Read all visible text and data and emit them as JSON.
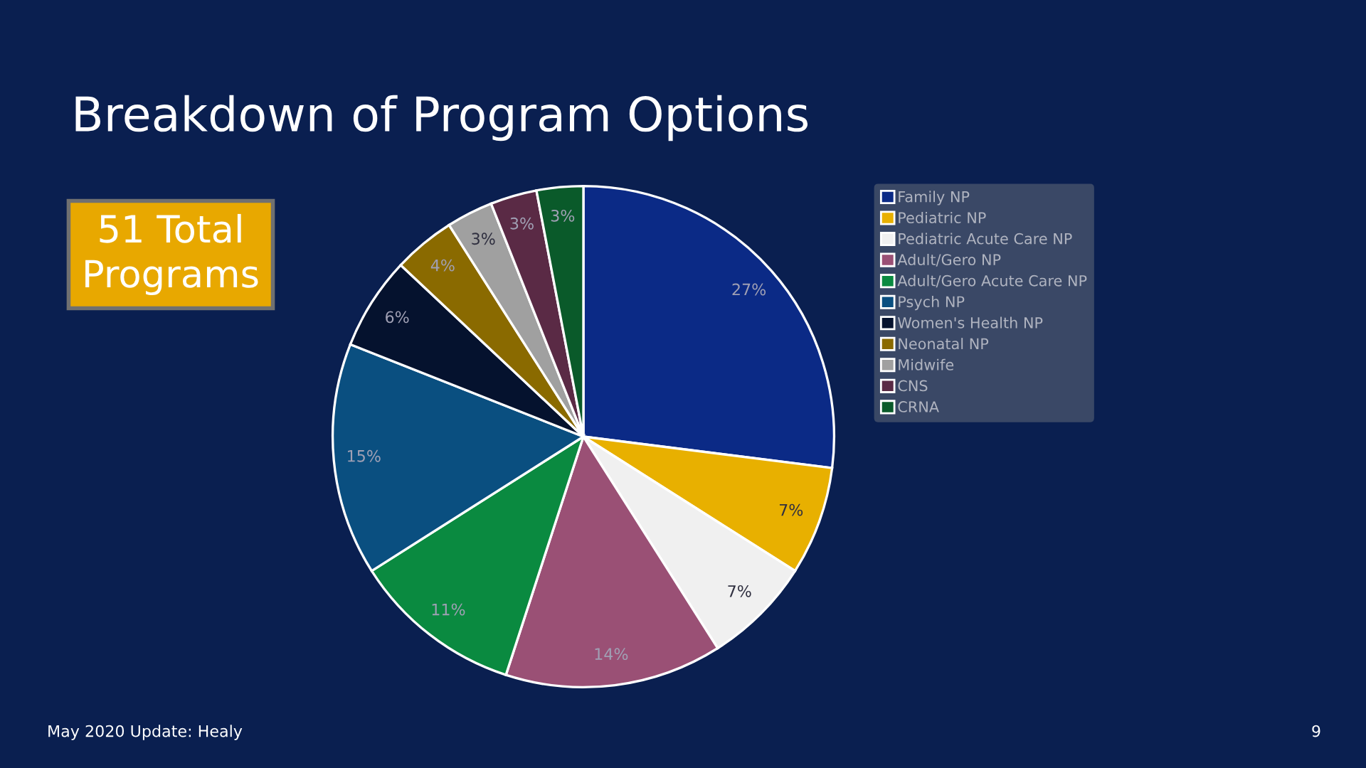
{
  "chart_data": {
    "type": "pie",
    "title": "Breakdown of Program Options",
    "categories": [
      "Family NP",
      "Pediatric NP",
      "Pediatric Acute Care NP",
      "Adult/Gero NP",
      "Adult/Gero Acute Care NP",
      "Psych NP",
      "Women's Health NP",
      "Neonatal NP",
      "Midwife",
      "CNS",
      "CRNA"
    ],
    "values": [
      27,
      7,
      7,
      14,
      11,
      15,
      6,
      4,
      3,
      3,
      3
    ],
    "value_labels": [
      "27%",
      "7%",
      "7%",
      "14%",
      "11%",
      "15%",
      "6%",
      "4%",
      "3%",
      "3%",
      "3%"
    ],
    "colors": [
      "#0b2a86",
      "#e8b000",
      "#f0f0f0",
      "#9a5075",
      "#0a8a40",
      "#0a4f80",
      "#05122e",
      "#8a6a00",
      "#a0a0a0",
      "#5a2a45",
      "#0a5a2a"
    ],
    "annotations": [
      "51 Total Programs",
      "May 2020 Update: Healy",
      "9"
    ],
    "legend": "right"
  }
}
